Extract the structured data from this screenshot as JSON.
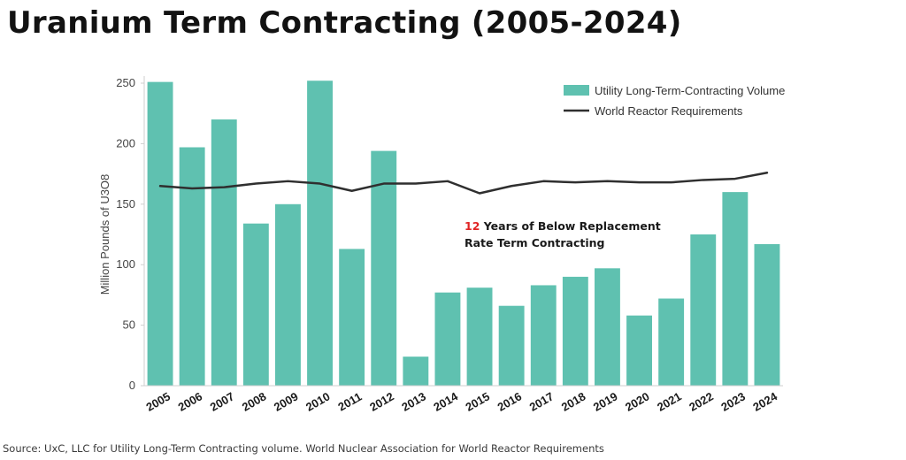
{
  "title": "Uranium Term Contracting (2005-2024)",
  "source": "Source: UxC, LLC for Utility Long-Term Contracting volume. World Nuclear Association for World Reactor Requirements",
  "colors": {
    "bar": "#5fc1b0",
    "line": "#2f2f2f",
    "annotation_highlight": "#e02424",
    "axis": "#cfcfcf"
  },
  "annotation": {
    "number": "12",
    "line1_rest": " Years of Below Replacement",
    "line2": "Rate Term Contracting"
  },
  "chart_data": {
    "type": "bar",
    "categories": [
      "2005",
      "2006",
      "2007",
      "2008",
      "2009",
      "2010",
      "2011",
      "2012",
      "2013",
      "2014",
      "2015",
      "2016",
      "2017",
      "2018",
      "2019",
      "2020",
      "2021",
      "2022",
      "2023",
      "2024"
    ],
    "ylabel": "Million Pounds of U3O8",
    "ylim": [
      0,
      250
    ],
    "yticks": [
      0,
      50,
      100,
      150,
      200,
      250
    ],
    "grid": false,
    "legend_position": "top-right",
    "series": [
      {
        "name": "Utility Long-Term-Contracting Volume",
        "type": "bar",
        "values": [
          251,
          197,
          220,
          134,
          150,
          252,
          113,
          194,
          24,
          77,
          81,
          66,
          83,
          90,
          97,
          58,
          72,
          125,
          160,
          117
        ]
      },
      {
        "name": "World Reactor Requirements",
        "type": "line",
        "values": [
          165,
          163,
          164,
          167,
          169,
          167,
          161,
          167,
          167,
          169,
          159,
          165,
          169,
          168,
          169,
          168,
          168,
          170,
          171,
          176
        ]
      }
    ]
  }
}
